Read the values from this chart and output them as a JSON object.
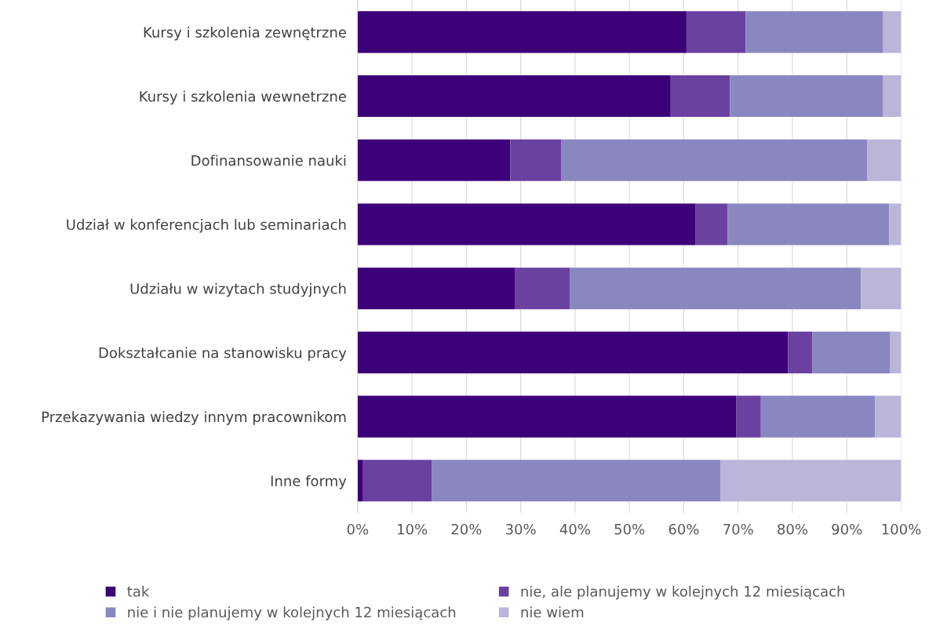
{
  "chart_data": {
    "type": "bar",
    "orientation": "horizontal",
    "stacked": true,
    "categories": [
      "Kursy i szkolenia zewnętrzne",
      "Kursy i szkolenia wewnetrzne",
      "Dofinansowanie nauki",
      "Udział w konferencjach lub seminariach",
      "Udziału w wizytach studyjnych",
      "Dokształcanie na stanowisku pracy",
      "Przekazywania wiedzy innym pracownikom",
      "Inne formy"
    ],
    "series": [
      {
        "name": "tak",
        "color": "#3c0078",
        "values": [
          60.5,
          57.6,
          28.1,
          62.2,
          29.0,
          79.2,
          69.7,
          1.0
        ]
      },
      {
        "name": "nie, ale planujemy w kolejnych 12 miesiącach",
        "color": "#6a41a0",
        "values": [
          10.9,
          10.9,
          9.4,
          5.9,
          10.0,
          4.5,
          4.5,
          12.6
        ]
      },
      {
        "name": "nie i nie planujemy w kolejnych 12 miesiącach",
        "color": "#8a87c0",
        "values": [
          25.3,
          28.2,
          56.3,
          29.7,
          53.6,
          14.3,
          21.0,
          53.2
        ]
      },
      {
        "name": "nie wiem",
        "color": "#b9b6d9",
        "values": [
          3.3,
          3.3,
          6.2,
          2.2,
          7.4,
          2.0,
          4.8,
          33.2
        ]
      }
    ],
    "xlim": [
      0,
      100
    ],
    "xticks": [
      {
        "value": 0,
        "label": "0%"
      },
      {
        "value": 10,
        "label": "10%"
      },
      {
        "value": 20,
        "label": "20%"
      },
      {
        "value": 30,
        "label": "30%"
      },
      {
        "value": 40,
        "label": "40%"
      },
      {
        "value": 50,
        "label": "50%"
      },
      {
        "value": 60,
        "label": "60%"
      },
      {
        "value": 70,
        "label": "70%"
      },
      {
        "value": 80,
        "label": "80%"
      },
      {
        "value": 90,
        "label": "90%"
      },
      {
        "value": 100,
        "label": "100%"
      }
    ],
    "grid": "x",
    "legend": "bottom"
  }
}
